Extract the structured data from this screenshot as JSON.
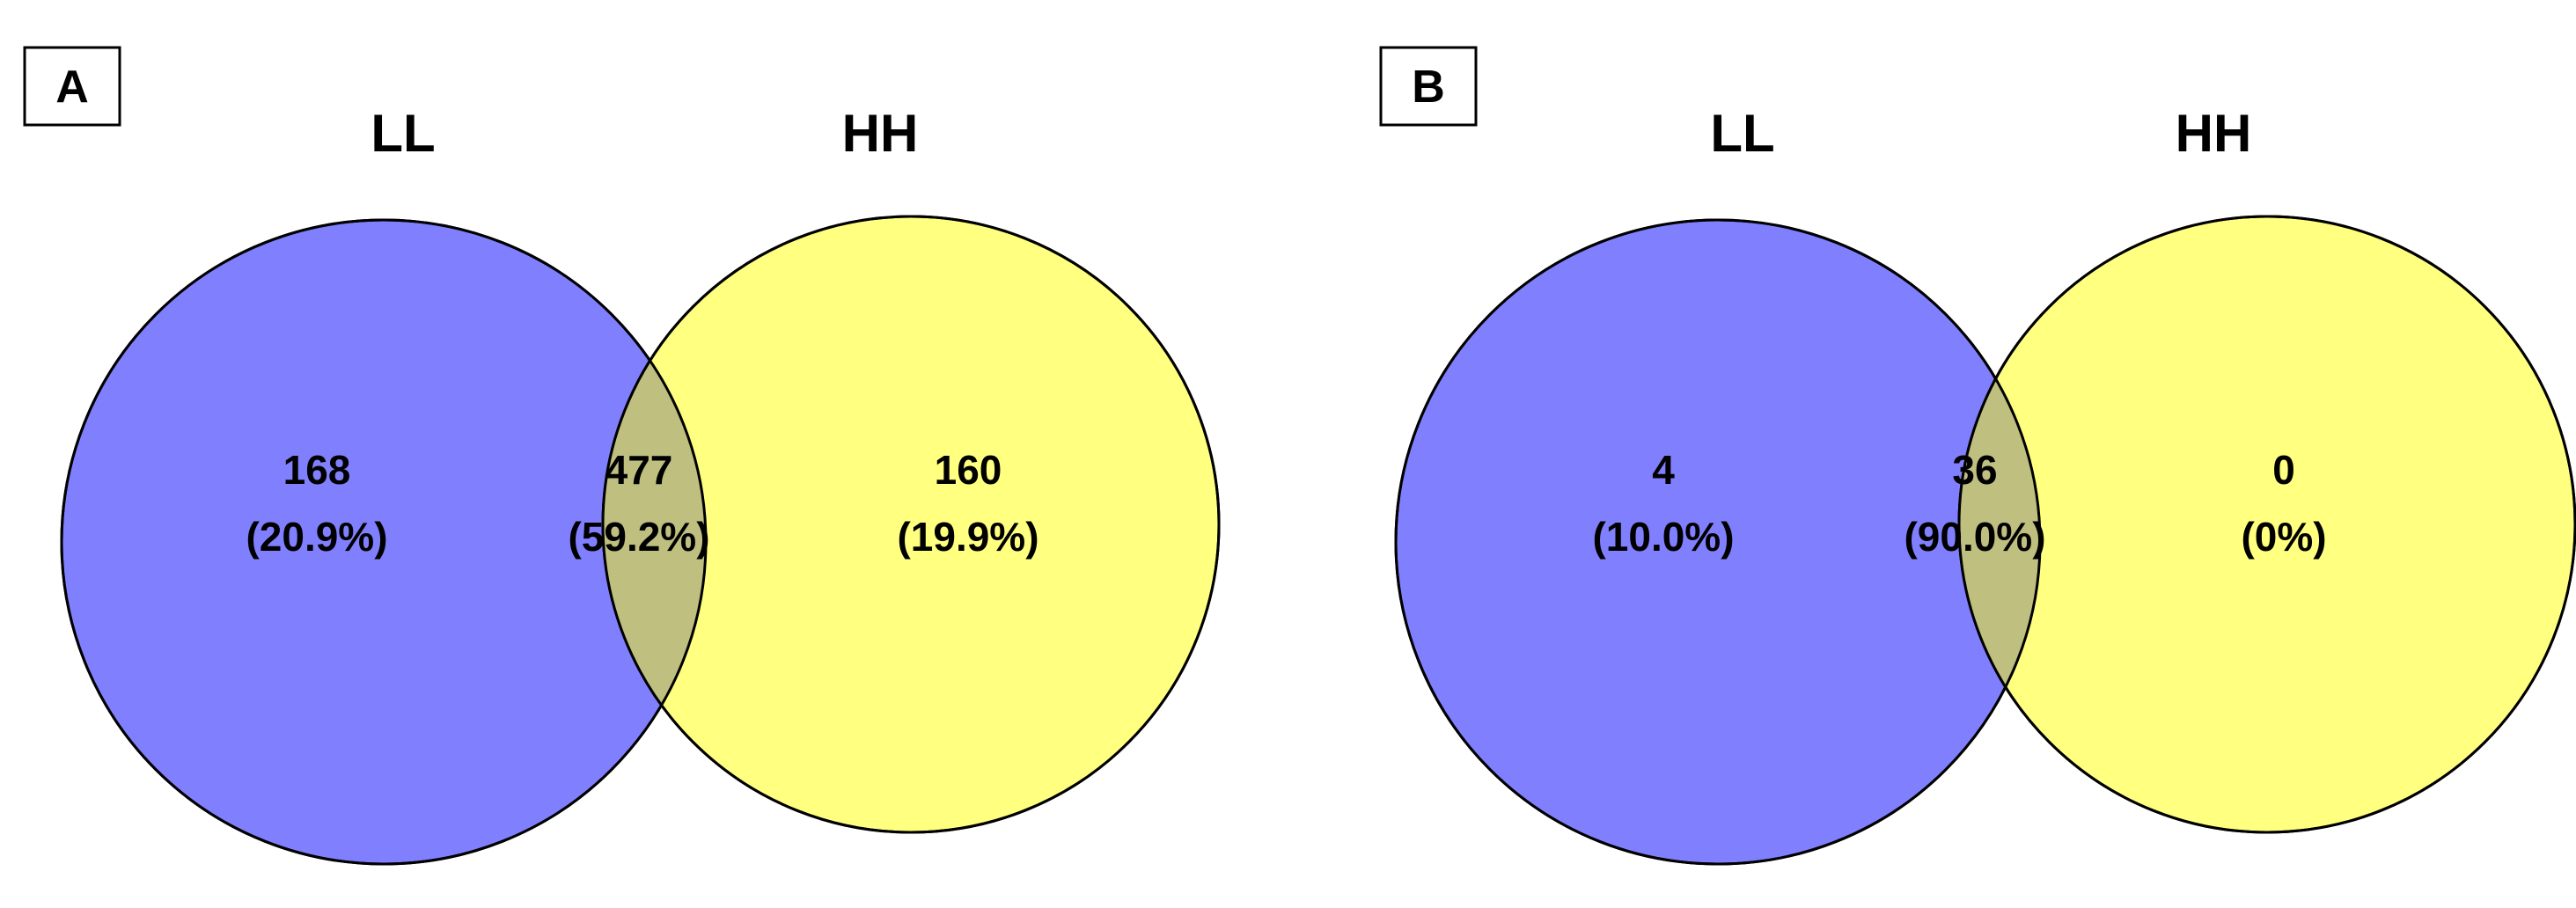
{
  "colors": {
    "left_set": "#8080ff",
    "right_set": "#ffff80",
    "overlap": "#bfbf80",
    "outline": "#000000"
  },
  "panels": [
    {
      "label": "A",
      "left_title": "LL",
      "right_title": "HH",
      "left": {
        "count": "168",
        "percent": "(20.9%)"
      },
      "overlap": {
        "count": "477",
        "percent": "(59.2%)"
      },
      "right": {
        "count": "160",
        "percent": "(19.9%)"
      }
    },
    {
      "label": "B",
      "left_title": "LL",
      "right_title": "HH",
      "left": {
        "count": "4",
        "percent": "(10.0%)"
      },
      "overlap": {
        "count": "36",
        "percent": "(90.0%)"
      },
      "right": {
        "count": "0",
        "percent": "(0%)"
      }
    }
  ]
}
